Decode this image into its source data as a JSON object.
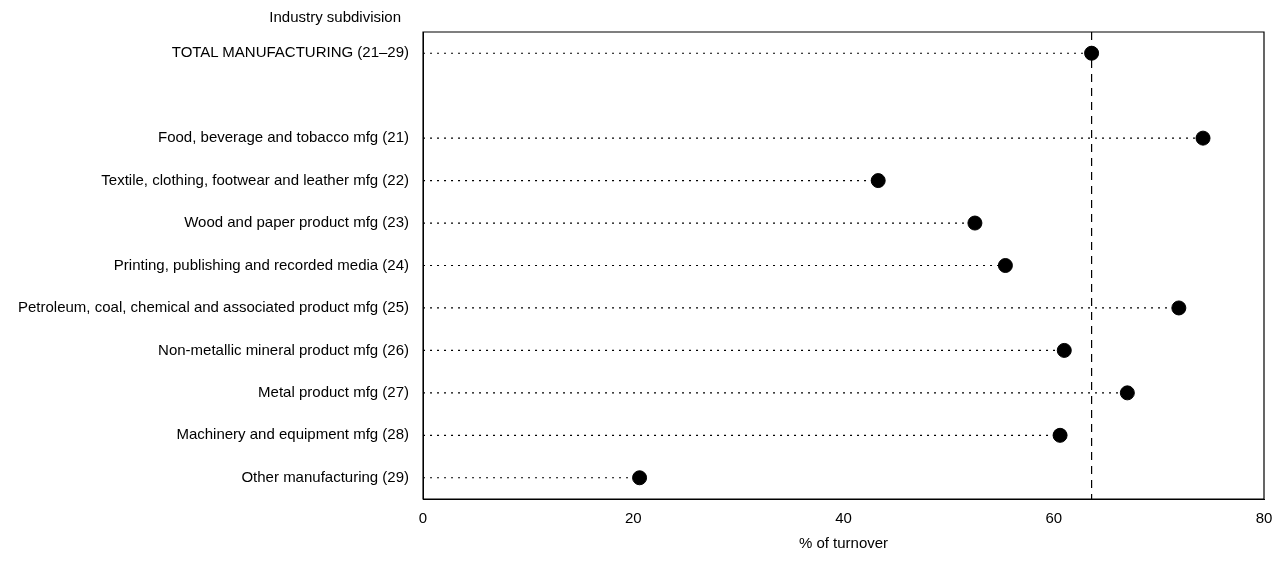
{
  "chart_data": {
    "type": "lollipop",
    "orientation": "horizontal",
    "line_style": "dotted",
    "marker": "circle",
    "ylabel": "Industry subdivision",
    "xlabel": "% of turnover",
    "categories": [
      "TOTAL MANUFACTURING (21–29)",
      null,
      "Food, beverage and tobacco mfg (21)",
      "Textile, clothing, footwear and leather mfg (22)",
      "Wood and paper product mfg (23)",
      "Printing, publishing and recorded media (24)",
      "Petroleum, coal, chemical and associated product mfg (25)",
      "Non-metallic mineral product mfg (26)",
      "Metal product mfg (27)",
      "Machinery and equipment mfg (28)",
      "Other manufacturing (29)"
    ],
    "values": [
      63.6,
      null,
      74.2,
      43.3,
      52.5,
      55.4,
      71.9,
      61.0,
      67.0,
      60.6,
      20.6
    ],
    "color": "#000000",
    "xlim": [
      0,
      80
    ],
    "xticks": [
      0,
      20,
      40,
      60,
      80
    ],
    "grid": false,
    "legend": false,
    "ref_lines": [
      {
        "axis": "x",
        "value": 63.6,
        "line_style": "dashed",
        "color": "#000000"
      }
    ]
  }
}
